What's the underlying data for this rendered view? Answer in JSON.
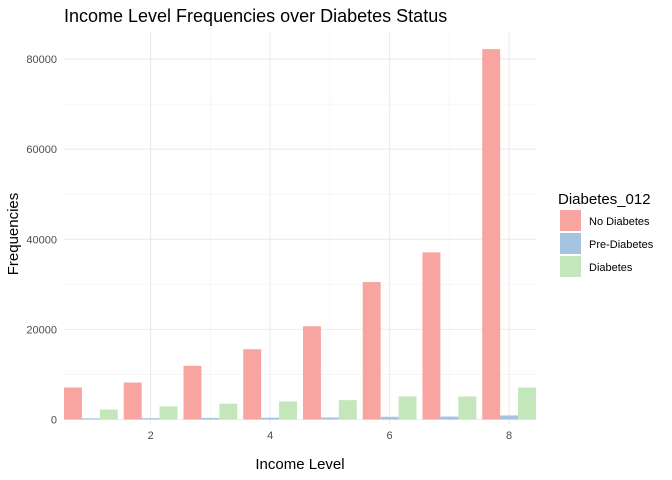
{
  "chart_data": {
    "type": "bar",
    "title": "Income Level Frequencies over Diabetes Status",
    "xlabel": "Income Level",
    "ylabel": "Frequencies",
    "categories": [
      1,
      2,
      3,
      4,
      5,
      6,
      7,
      8
    ],
    "x_ticks": [
      2,
      4,
      6,
      8
    ],
    "x_tick_labels": [
      "2",
      "4",
      "6",
      "8"
    ],
    "xlim": [
      0.55,
      8.45
    ],
    "ylim": [
      -1000,
      86000
    ],
    "y_ticks": [
      0,
      20000,
      40000,
      60000,
      80000
    ],
    "y_tick_labels": [
      "0",
      "20000",
      "40000",
      "60000",
      "80000"
    ],
    "grid": true,
    "legend": {
      "title": "Diabetes_012",
      "position": "right"
    },
    "series": [
      {
        "name": "No Diabetes",
        "color": "#f8a5a2",
        "values": [
          7100,
          8200,
          11900,
          15600,
          20700,
          30500,
          37100,
          82200
        ]
      },
      {
        "name": "Pre-Diabetes",
        "color": "#a6c4e0",
        "values": [
          250,
          280,
          350,
          400,
          450,
          600,
          650,
          900
        ]
      },
      {
        "name": "Diabetes",
        "color": "#c4e6bb",
        "values": [
          2200,
          2900,
          3500,
          4000,
          4300,
          5100,
          5100,
          7100
        ]
      }
    ]
  }
}
